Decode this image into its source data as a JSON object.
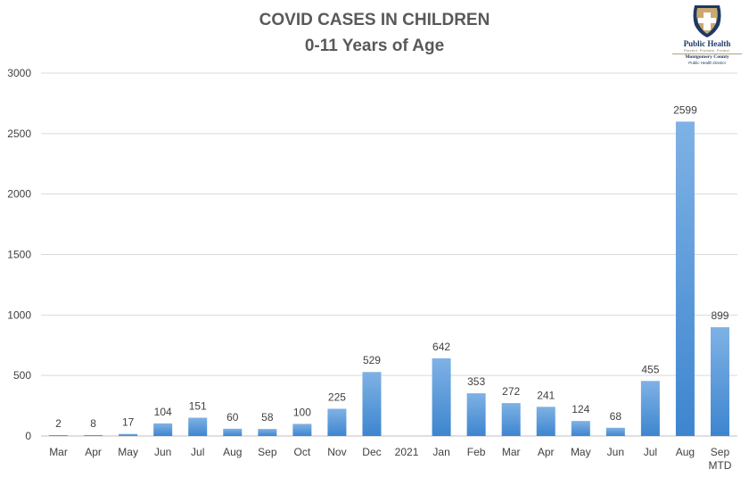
{
  "chart_data": {
    "type": "bar",
    "title": "COVID CASES IN CHILDREN",
    "subtitle": "0-11 Years of Age",
    "xlabel": "",
    "ylabel": "",
    "ylim": [
      0,
      3000
    ],
    "yticks": [
      0,
      500,
      1000,
      1500,
      2000,
      2500,
      3000
    ],
    "grid": true,
    "categories": [
      "Mar",
      "Apr",
      "May",
      "Jun",
      "Jul",
      "Aug",
      "Sep",
      "Oct",
      "Nov",
      "Dec",
      "2021",
      "Jan",
      "Feb",
      "Mar",
      "Apr",
      "May",
      "Jun",
      "Jul",
      "Aug",
      "Sep\nMTD"
    ],
    "values": [
      2,
      8,
      17,
      104,
      151,
      60,
      58,
      100,
      225,
      529,
      null,
      642,
      353,
      272,
      241,
      124,
      68,
      455,
      2599,
      899
    ],
    "colors": {
      "bar_top": "#7fb2e5",
      "bar_bottom": "#3d85cf",
      "grid": "#d9d9d9",
      "text": "#404040",
      "title": "#595959"
    }
  },
  "logo": {
    "org": "Public Health",
    "tagline": "Prevent. Promote. Protect.",
    "county": "Montgomery County",
    "district": "Public Health District"
  }
}
